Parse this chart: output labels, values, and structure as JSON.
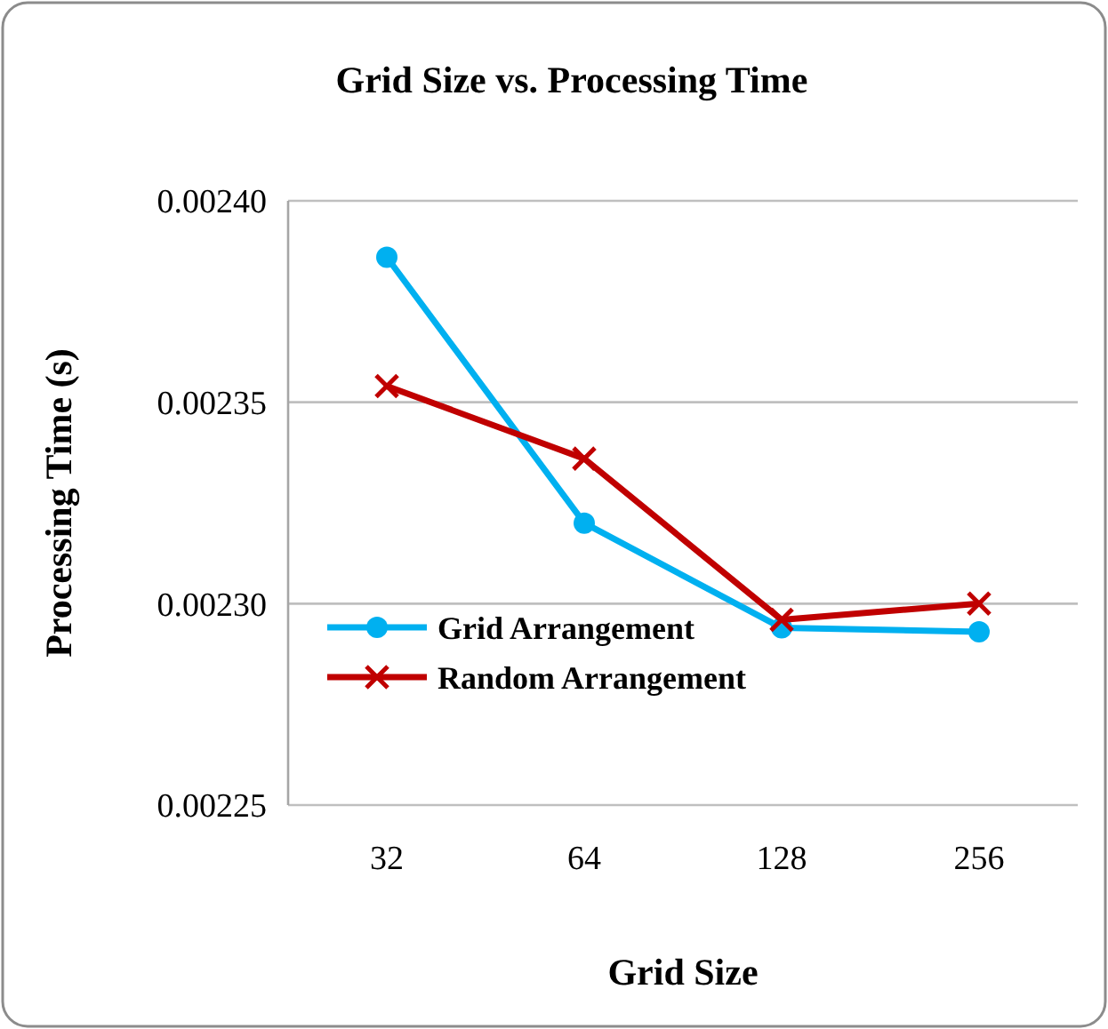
{
  "chart_data": {
    "type": "line",
    "title": "Grid Size vs. Processing Time",
    "xlabel": "Grid Size",
    "ylabel": "Processing Time (s)",
    "categories": [
      "32",
      "64",
      "128",
      "256"
    ],
    "series": [
      {
        "name": "Grid Arrangement",
        "color": "#00b0f0",
        "marker": "circle",
        "values": [
          0.002386,
          0.00232,
          0.002294,
          0.002293
        ]
      },
      {
        "name": "Random Arrangement",
        "color": "#c00000",
        "marker": "cross",
        "values": [
          0.002354,
          0.002336,
          0.002296,
          0.0023
        ]
      }
    ],
    "ylim": [
      0.00225,
      0.0024
    ],
    "yticks": [
      {
        "value": 0.00225,
        "label": "0.00225"
      },
      {
        "value": 0.0023,
        "label": "0.00230"
      },
      {
        "value": 0.00235,
        "label": "0.00235"
      },
      {
        "value": 0.0024,
        "label": "0.00240"
      }
    ],
    "grid": "y",
    "legend": "bottom left",
    "line_style": "solid"
  }
}
